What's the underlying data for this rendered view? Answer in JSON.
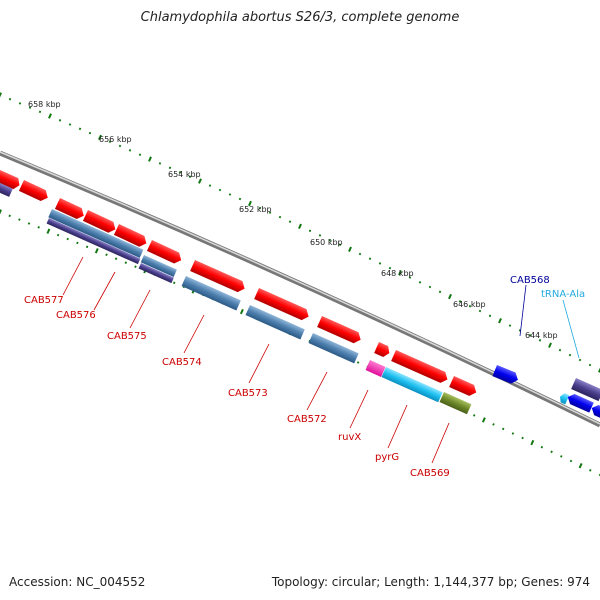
{
  "title": "Chlamydophila abortus S26/3, complete genome",
  "footer": {
    "accession": "Accession: NC_004552",
    "summary": "Topology: circular; Length: 1,144,377 bp; Genes: 974"
  },
  "ruler": {
    "unit": "kbp",
    "ticks": [
      "658 kbp",
      "656 kbp",
      "654 kbp",
      "652 kbp",
      "650 kbp",
      "648 kbp",
      "646 kbp",
      "644 kbp"
    ]
  },
  "colors": {
    "gene_forward": "#ff0000",
    "gene_reverse": "#ff0000",
    "cds_match": "#4d7fae",
    "cds_other": "#4a3f8c",
    "trna": "#33bbee",
    "gene_blue": "#0000ee",
    "label_red": "#cc0000",
    "label_blue": "#000099",
    "label_trna": "#22aadd",
    "backbone": "#888888",
    "tick_green": "#117711"
  },
  "gene_labels": [
    {
      "name": "CAB577",
      "color": "#cc0000"
    },
    {
      "name": "CAB576",
      "color": "#cc0000"
    },
    {
      "name": "CAB575",
      "color": "#cc0000"
    },
    {
      "name": "CAB574",
      "color": "#cc0000"
    },
    {
      "name": "CAB573",
      "color": "#cc0000"
    },
    {
      "name": "CAB572",
      "color": "#cc0000"
    },
    {
      "name": "ruvX",
      "color": "#cc0000"
    },
    {
      "name": "pyrG",
      "color": "#cc0000"
    },
    {
      "name": "CAB569",
      "color": "#cc0000"
    },
    {
      "name": "CAB568",
      "color": "#000099"
    },
    {
      "name": "tRNA-Ala",
      "color": "#22aadd"
    }
  ]
}
